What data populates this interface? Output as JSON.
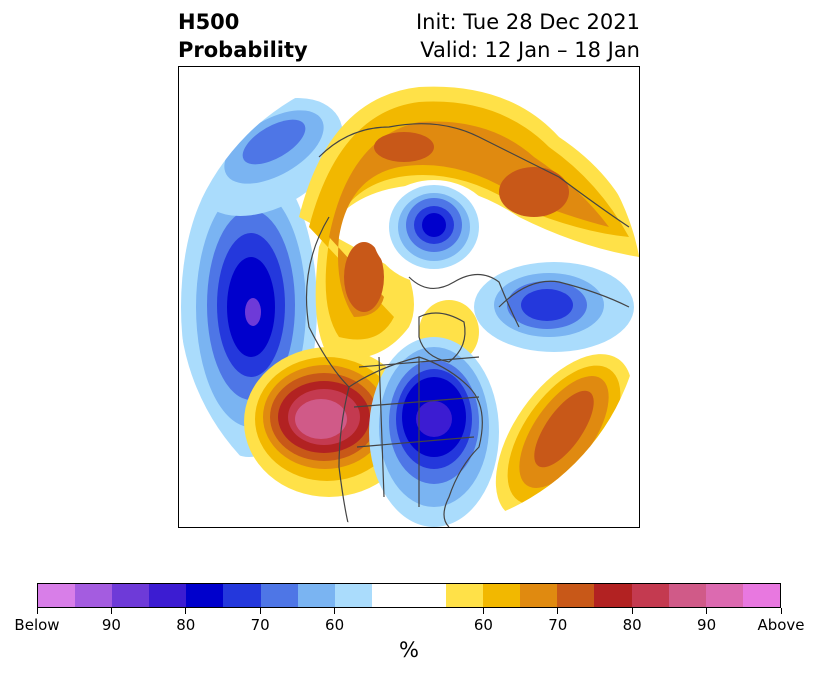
{
  "title": {
    "left_line1": "H500",
    "left_line2": "Probability",
    "right_line1": "Init: Tue 28 Dec 2021",
    "right_line2": "Valid: 12 Jan – 18 Jan"
  },
  "colorbar": {
    "unit": "%",
    "colors": [
      "#d87ee8",
      "#a45ce0",
      "#6e3ad8",
      "#3c1cd2",
      "#0000cc",
      "#2438dc",
      "#4e76e6",
      "#7ab4f2",
      "#aadcfc",
      "#ffffff",
      "#ffffff",
      "#ffe148",
      "#f2b800",
      "#e08a10",
      "#c85818",
      "#b22222",
      "#c43a50",
      "#d05a88",
      "#dc6ab0",
      "#e878e0"
    ],
    "tick_labels": [
      "Below",
      "90",
      "80",
      "70",
      "60",
      "60",
      "70",
      "80",
      "90",
      "Above"
    ]
  },
  "map": {
    "projection": "north-polar-stereographic",
    "below_color_scale": [
      "#aadcfc",
      "#7ab4f2",
      "#4e76e6",
      "#2438dc",
      "#0000cc"
    ],
    "above_color_scale": [
      "#ffe148",
      "#f2b800",
      "#e08a10",
      "#c85818",
      "#b22222",
      "#d05a88"
    ]
  }
}
